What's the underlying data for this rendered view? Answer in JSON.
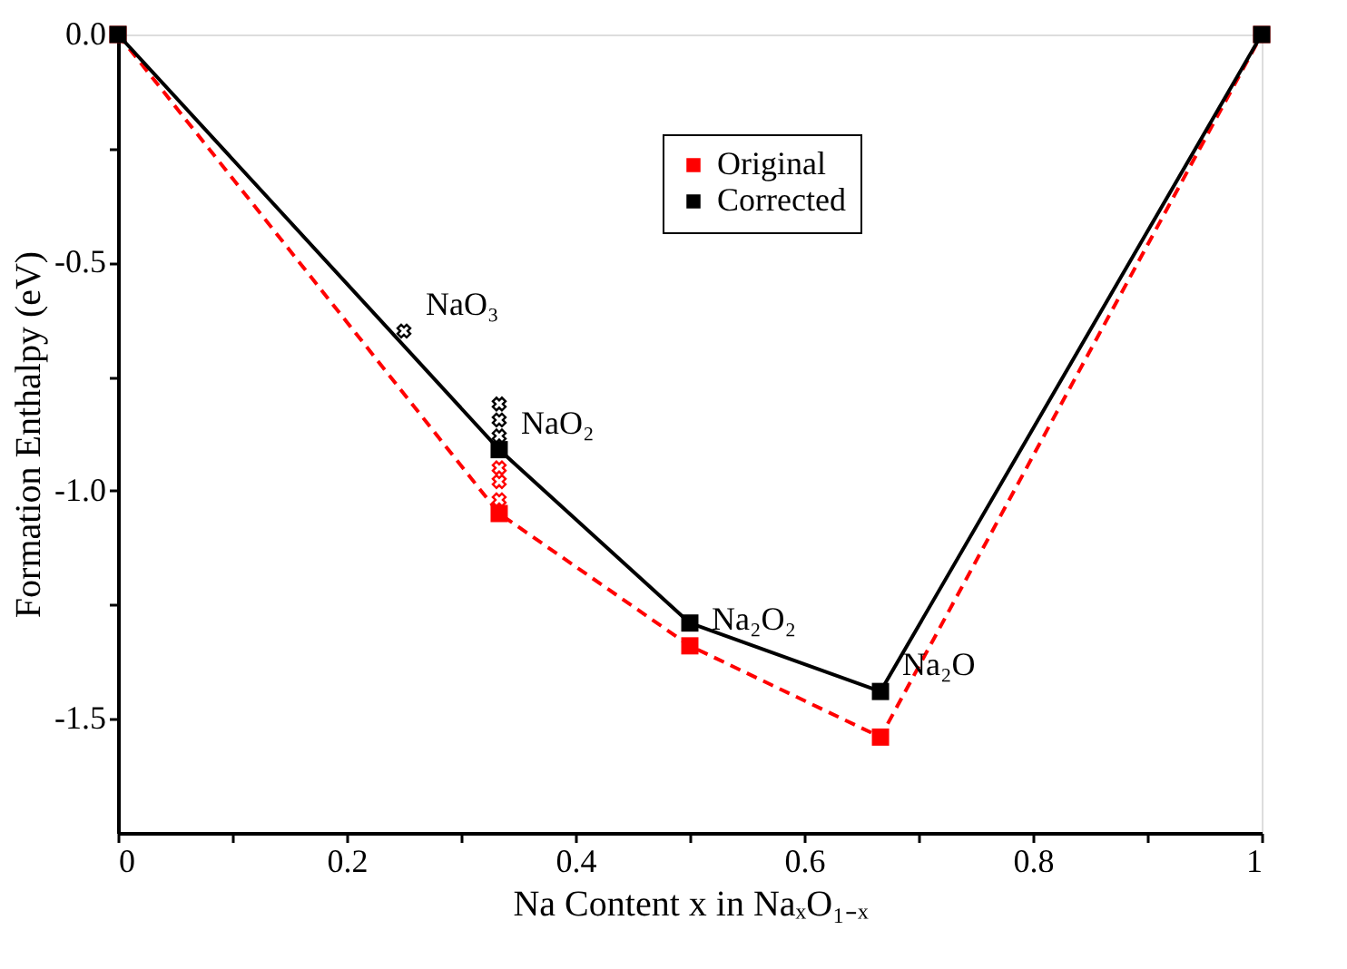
{
  "chart_data": {
    "type": "line",
    "xlabel": "Na Content x in NaₓO₁₋ₓ",
    "ylabel": "Formation Enthalpy (eV)",
    "series": [
      {
        "name": "Original",
        "color": "#ff0000",
        "line_style": "dashed",
        "marker": "square",
        "x": [
          0,
          0.3333,
          0.5,
          0.6667,
          1
        ],
        "values": [
          0,
          -1.05,
          -1.34,
          -1.54,
          0
        ]
      },
      {
        "name": "Corrected",
        "color": "#000000",
        "line_style": "solid",
        "marker": "square",
        "x": [
          0,
          0.3333,
          0.5,
          0.6667,
          1
        ],
        "values": [
          0,
          -0.91,
          -1.29,
          -1.44,
          0
        ]
      },
      {
        "type": "scatter",
        "color": "#ff0000",
        "marker": "cross",
        "x": [
          0.3333,
          0.3333,
          0.3333
        ],
        "values": [
          -0.95,
          -0.98,
          -1.02
        ]
      },
      {
        "type": "scatter",
        "color": "#000000",
        "marker": "cross",
        "x": [
          0.25,
          0.3333,
          0.3333,
          0.3333
        ],
        "values": [
          -0.65,
          -0.81,
          -0.845,
          -0.88
        ]
      }
    ],
    "annotations": [
      {
        "text": "NaO₃",
        "x": 0.25,
        "y": -0.65
      },
      {
        "text": "NaO₂",
        "x": 0.3333,
        "y": -0.91
      },
      {
        "text": "Na₂O₂",
        "x": 0.5,
        "y": -1.34
      },
      {
        "text": "Na₂O",
        "x": 0.6667,
        "y": -1.44
      }
    ],
    "xlim": [
      0,
      1
    ],
    "ylim": [
      -1.75,
      0
    ],
    "xticks": [
      0,
      {
        "value": 0.1,
        "label": null
      },
      {
        "value": 0.2,
        "label": "0.2"
      },
      {
        "value": 0.3,
        "label": null
      },
      {
        "value": 0.4,
        "label": "0.4"
      },
      {
        "value": 0.5,
        "label": null
      },
      {
        "value": 0.6,
        "label": "0.6"
      },
      {
        "value": 0.7,
        "label": null
      },
      {
        "value": 0.8,
        "label": "0.8"
      },
      {
        "value": 0.9,
        "label": null
      },
      1
    ],
    "yticks": [
      {
        "value": 0,
        "label": "0.0"
      },
      {
        "value": -0.25,
        "label": null
      },
      {
        "value": -0.5,
        "label": "-0.5"
      },
      {
        "value": -0.75,
        "label": null
      },
      {
        "value": -1,
        "label": "-1.0"
      },
      {
        "value": -1.25,
        "label": null
      },
      {
        "value": -1.5,
        "label": "-1.5"
      }
    ],
    "grid": false,
    "legend": "top"
  }
}
